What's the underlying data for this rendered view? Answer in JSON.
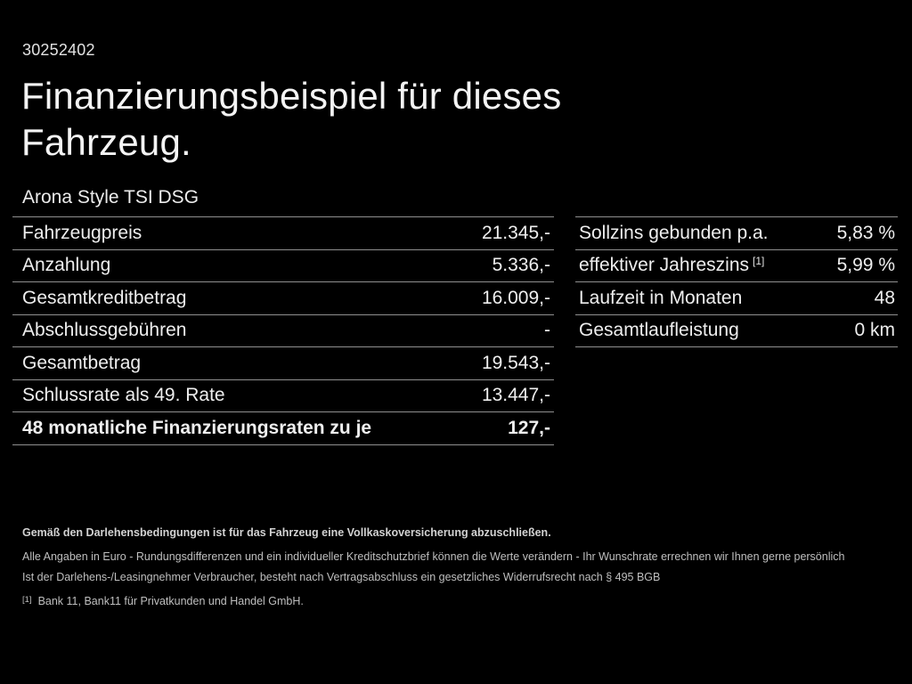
{
  "header": {
    "code": "30252402",
    "title": "Finanzierungsbeispiel für dieses Fahrzeug.",
    "subtitle": "Arona Style TSI DSG"
  },
  "tables": {
    "left": {
      "rows": [
        {
          "label": "Fahrzeugpreis",
          "value": "21.345,-"
        },
        {
          "label": "Anzahlung",
          "value": "5.336,-"
        },
        {
          "label": "Gesamtkreditbetrag",
          "value": "16.009,-"
        },
        {
          "label": "Abschlussgebühren",
          "value": "-"
        },
        {
          "label": "Gesamtbetrag",
          "value": "19.543,-"
        },
        {
          "label": "Schlussrate als 49. Rate",
          "value": "13.447,-"
        },
        {
          "label": "48 monatliche Finanzierungsraten zu je",
          "value": "127,-"
        }
      ]
    },
    "right": {
      "rows": [
        {
          "label": "Sollzins gebunden p.a.",
          "value": "5,83 %"
        },
        {
          "label": "effektiver Jahreszins",
          "sup": "[1]",
          "value": "5,99 %"
        },
        {
          "label": "Laufzeit in Monaten",
          "value": "48"
        },
        {
          "label": "Gesamtlaufleistung",
          "value": "0 km"
        }
      ]
    }
  },
  "footer": {
    "line1": "Gemäß den Darlehensbedingungen ist für das Fahrzeug eine Vollkaskoversicherung abzuschließen.",
    "line2": "Alle Angaben in Euro - Rundungsdifferenzen und ein individueller Kreditschutzbrief können die Werte verändern - Ihr Wunschrate errechnen wir Ihnen gerne persönlich",
    "line3": "Ist der Darlehens-/Leasingnehmer Verbraucher, besteht nach Vertragsabschluss ein gesetzliches Widerrufsrecht nach § 495 BGB",
    "footnote_marker": "[1]",
    "footnote_text": "Bank 11, Bank11 für Privatkunden und Handel GmbH."
  },
  "colors": {
    "background": "#000000",
    "text": "#ededed",
    "divider": "#8f8f8f",
    "footer_text": "#bfbfbf"
  }
}
